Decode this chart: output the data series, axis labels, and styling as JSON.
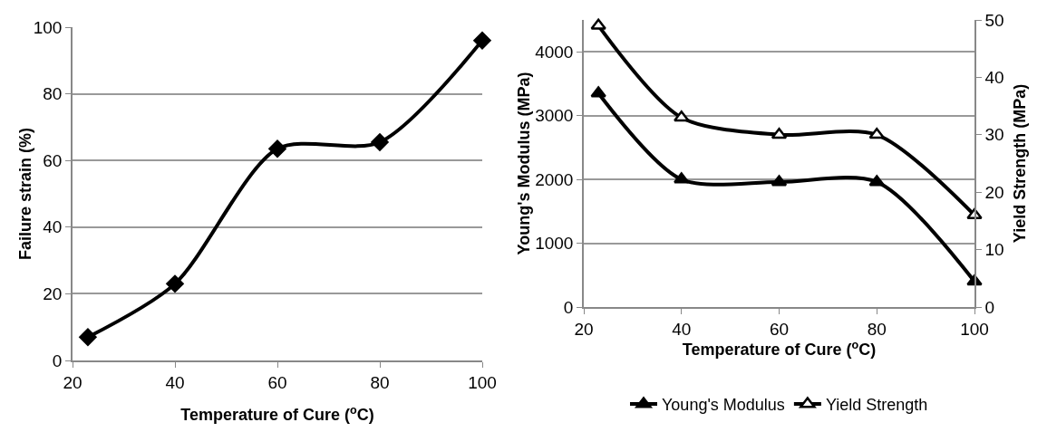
{
  "chart_data": [
    {
      "type": "line",
      "xlabel": "Temperature of Cure ($^{o}$C)",
      "ylabel": "Failure strain (%)",
      "x": [
        23,
        40,
        60,
        80,
        100
      ],
      "series": [
        {
          "color": "#000000",
          "values": [
            7,
            23,
            63.5,
            65.5,
            96
          ]
        }
      ],
      "xlim": [
        20,
        100
      ],
      "xticks": [
        20,
        40,
        60,
        80,
        100
      ],
      "ylim": [
        0,
        100
      ],
      "yticks": [
        0,
        20,
        40,
        60,
        80,
        100
      ],
      "grid": "y",
      "legend": false,
      "marker": "diamond",
      "line_style": "solid"
    },
    {
      "type": "line",
      "xlabel": "Temperature of Cure ($^{o}$C)",
      "ylabel": "Young's Modulus (MPa)",
      "y2label": "Yield Strength (MPa)",
      "x": [
        23,
        40,
        60,
        80,
        100
      ],
      "series": [
        {
          "name": "Young's Modulus",
          "color": "#000000",
          "values": [
            3350,
            2000,
            1960,
            1960,
            400
          ]
        },
        {
          "name": "Yield Strength",
          "color": "#000000",
          "axis": "y2",
          "values": [
            49,
            33,
            30,
            30,
            16
          ]
        }
      ],
      "xlim": [
        20,
        100
      ],
      "xticks": [
        20,
        40,
        60,
        80,
        100
      ],
      "ylim": [
        0,
        4500
      ],
      "yticks": [
        0,
        1000,
        2000,
        3000,
        4000
      ],
      "y2lim": [
        0,
        50
      ],
      "y2ticks": [
        0,
        10,
        20,
        30,
        40,
        50
      ],
      "grid": "y",
      "legend": "bottom",
      "marker": "triangle",
      "line_style": "solid"
    }
  ]
}
